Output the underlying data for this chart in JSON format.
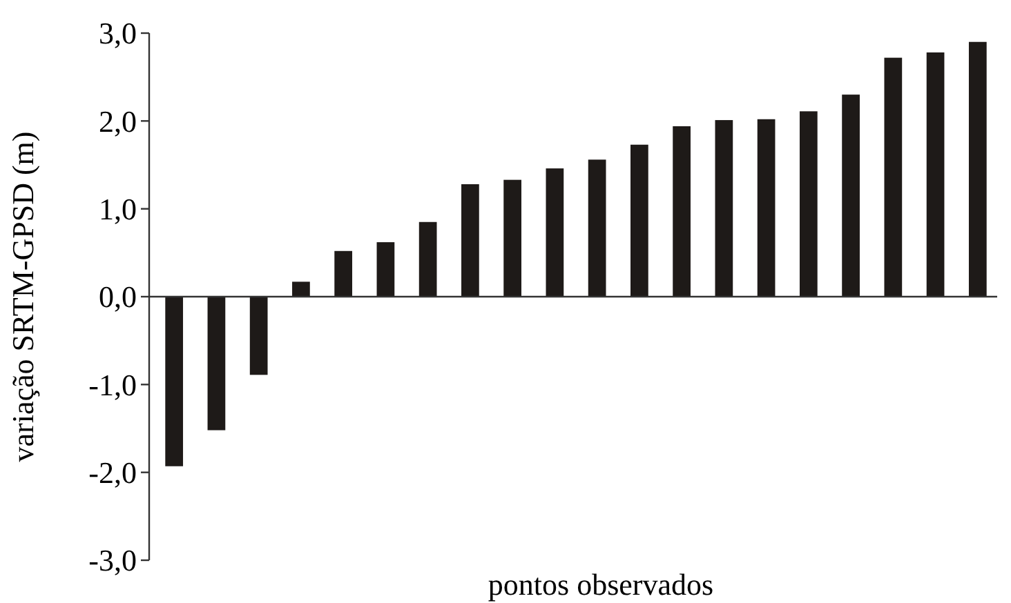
{
  "chart_data": {
    "type": "bar",
    "xlabel": "pontos observados",
    "ylabel": "variação SRTM-GPSD (m)",
    "categories": [
      null,
      null,
      null,
      null,
      null,
      null,
      null,
      null,
      null,
      null,
      null,
      null,
      null,
      null,
      null,
      null,
      null,
      null,
      null,
      null
    ],
    "values": [
      -1.93,
      -1.52,
      -0.89,
      0.17,
      0.52,
      0.62,
      0.85,
      1.28,
      1.33,
      1.46,
      1.56,
      1.73,
      1.94,
      2.01,
      2.02,
      2.11,
      2.3,
      2.72,
      2.78,
      2.9
    ],
    "color": "#1e1a18",
    "ylim": [
      -3,
      3
    ],
    "yticks": [
      {
        "value": -3,
        "label": "-3,0"
      },
      {
        "value": -2,
        "label": "-2,0"
      },
      {
        "value": -1,
        "label": "-1,0"
      },
      {
        "value": 0,
        "label": "0,0"
      },
      {
        "value": 1,
        "label": "1,0"
      },
      {
        "value": 2,
        "label": "2,0"
      },
      {
        "value": 3,
        "label": "3,0"
      }
    ]
  }
}
